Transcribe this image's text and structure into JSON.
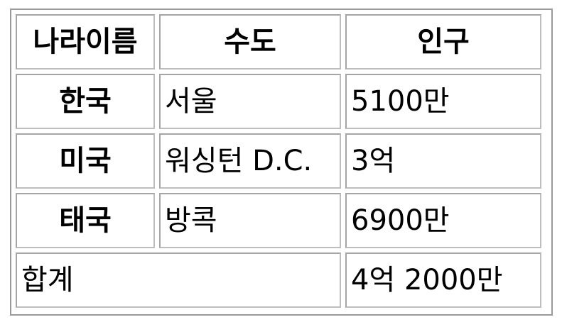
{
  "table": {
    "headers": [
      "나라이름",
      "수도",
      "인구"
    ],
    "rows": [
      {
        "country": "한국",
        "capital": "서울",
        "population": "5100만"
      },
      {
        "country": "미국",
        "capital": "워싱턴 D.C.",
        "population": "3억"
      },
      {
        "country": "태국",
        "capital": "방콕",
        "population": "6900만"
      }
    ],
    "total": {
      "label": "합계",
      "population": "4억 2000만"
    }
  }
}
